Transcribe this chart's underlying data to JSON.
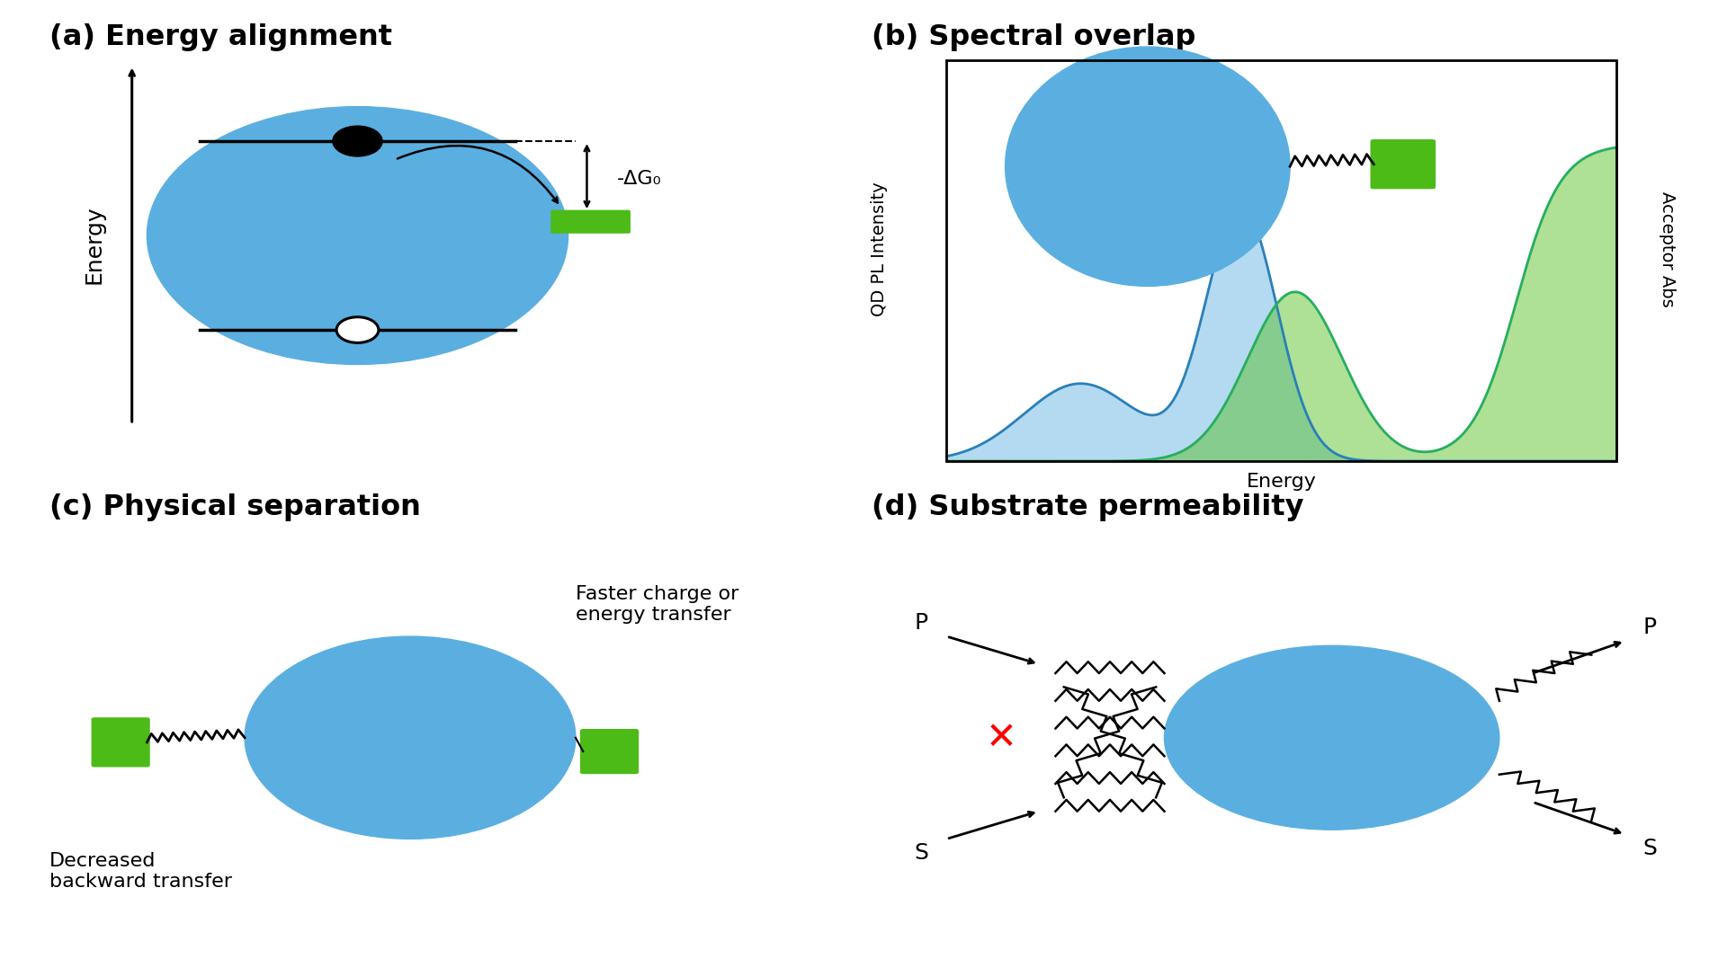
{
  "title_a": "(a) Energy alignment",
  "title_b": "(b) Spectral overlap",
  "title_c": "(c) Physical separation",
  "title_d": "(d) Substrate permeability",
  "blue_color": "#5AAFE0",
  "green_color": "#4CBB17",
  "green_color_dark": "#3DA012",
  "bg_color": "#FFFFFF",
  "label_energy": "Energy",
  "label_qdpl": "QD PL Intensity",
  "label_acc": "Acceptor Abs",
  "label_xenergy": "Energy",
  "label_faster": "Faster charge or\nenergy transfer",
  "label_decreased": "Decreased\nbackward transfer",
  "label_dg": "-ΔG₀"
}
